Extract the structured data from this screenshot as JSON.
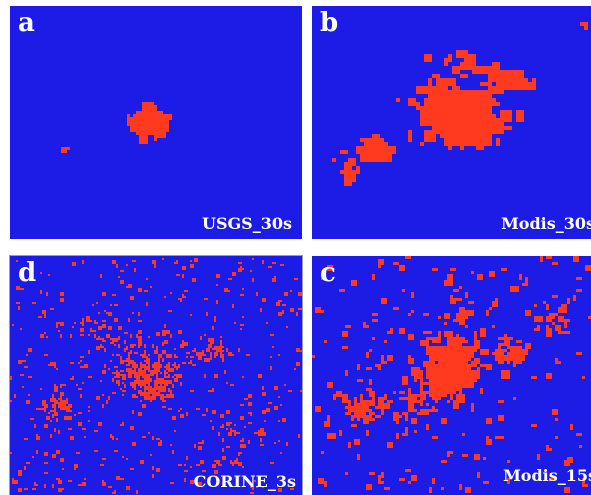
{
  "colors": {
    "background": "#1c1ce6",
    "urban": "#ff3a1e"
  },
  "panels": {
    "a": {
      "letter": "a",
      "caption": "USGS_30s"
    },
    "b": {
      "letter": "b",
      "caption": "Modis_30s"
    },
    "d": {
      "letter": "d",
      "caption": "CORINE_3s"
    },
    "c": {
      "letter": "c",
      "caption": "Modis_15s"
    }
  }
}
